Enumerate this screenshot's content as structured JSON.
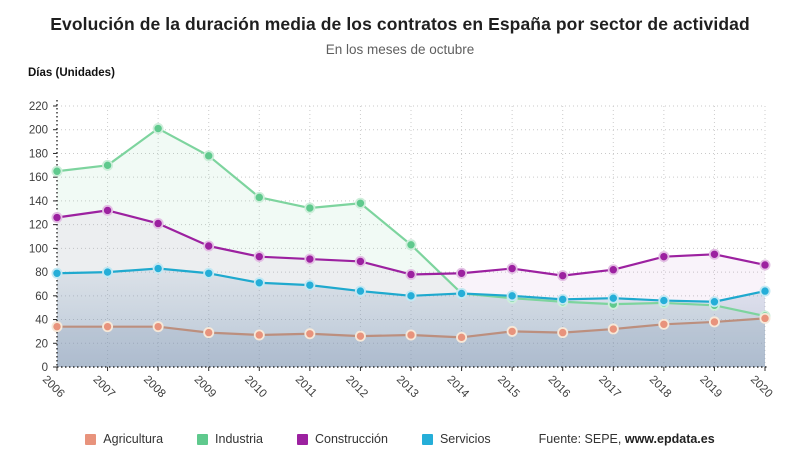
{
  "chart_data": {
    "type": "line",
    "title": "Evolución de la duración media de los contratos en España por sector de actividad",
    "subtitle": "En los meses de octubre",
    "unit_label": "Días (Unidades)",
    "x": [
      "2006",
      "2007",
      "2008",
      "2009",
      "2010",
      "2011",
      "2012",
      "2013",
      "2014",
      "2015",
      "2016",
      "2017",
      "2018",
      "2019",
      "2020"
    ],
    "ylim": [
      0,
      220
    ],
    "ytick_step": 20,
    "grid": "dotted",
    "legend_position": "bottom",
    "series": [
      {
        "name": "Agricultura",
        "color": "#E8937C",
        "line_color": "#BC8F7E",
        "dot_stroke": "#F6E8D8",
        "area_fill": "rgba(125,145,175,0.16)",
        "values": [
          34,
          34,
          34,
          29,
          27,
          28,
          26,
          27,
          25,
          30,
          29,
          32,
          36,
          38,
          41
        ]
      },
      {
        "name": "Industria",
        "color": "#5FC98D",
        "line_color": "#7DD49E",
        "dot_stroke": "#CDEEDA",
        "area_fill": "rgba(140,210,170,0.12)",
        "values": [
          165,
          170,
          201,
          178,
          143,
          134,
          138,
          103,
          62,
          58,
          55,
          53,
          54,
          52,
          43
        ]
      },
      {
        "name": "Construcción",
        "color": "#9C21A0",
        "line_color": "#9C21A0",
        "dot_stroke": "#E3BFE4",
        "area_fill": "rgba(190,120,195,0.09)",
        "values": [
          126,
          132,
          121,
          102,
          93,
          91,
          89,
          78,
          79,
          83,
          77,
          82,
          93,
          95,
          86
        ]
      },
      {
        "name": "Servicios",
        "color": "#25AED8",
        "line_color": "#1FA9CE",
        "dot_stroke": "#C2E8F3",
        "area_fill_top": "rgba(120,150,185,0.14)",
        "area_fill_bottom": "rgba(110,140,175,0.42)",
        "values": [
          79,
          80,
          83,
          79,
          71,
          69,
          64,
          60,
          62,
          60,
          57,
          58,
          56,
          55,
          64
        ]
      }
    ],
    "source_prefix": "Fuente: SEPE, ",
    "source_bold": "www.epdata.es"
  }
}
